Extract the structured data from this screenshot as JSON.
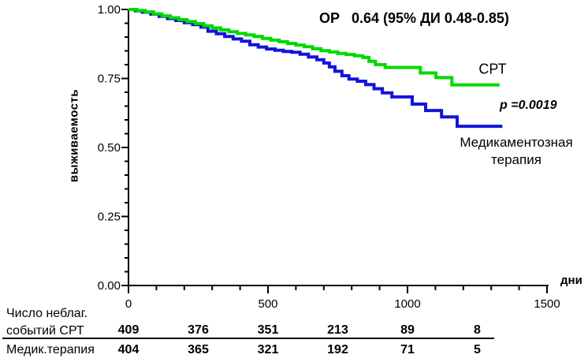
{
  "chart_data": {
    "type": "line",
    "subtype": "kaplan-meier-step",
    "annotation": "ОР   0.64 (95% ДИ 0.48-0.85)",
    "p_value_label": "p =0.0019",
    "xlabel": "дни",
    "ylabel": "выживаемость",
    "xlim": [
      0,
      1500
    ],
    "ylim": [
      0.0,
      1.0
    ],
    "x_major_ticks": [
      0,
      500,
      1000,
      1500
    ],
    "x_tick_labels": [
      "0",
      "500",
      "1000",
      "1500"
    ],
    "x_minor_step": 100,
    "y_major_ticks": [
      0.0,
      0.25,
      0.5,
      0.75,
      1.0
    ],
    "y_tick_labels": [
      "0.00",
      "0.25",
      "0.50",
      "0.75",
      "1.00"
    ],
    "y_minor_step": 0.05,
    "grid": false,
    "legend_position": "inline-right",
    "series": [
      {
        "id": "crt",
        "name": "СРТ",
        "color": "#00d900",
        "step": true,
        "points": [
          [
            0,
            1.0
          ],
          [
            30,
            0.996
          ],
          [
            60,
            0.991
          ],
          [
            90,
            0.984
          ],
          [
            120,
            0.977
          ],
          [
            150,
            0.97
          ],
          [
            180,
            0.963
          ],
          [
            210,
            0.956
          ],
          [
            240,
            0.949
          ],
          [
            270,
            0.941
          ],
          [
            300,
            0.933
          ],
          [
            330,
            0.926
          ],
          [
            360,
            0.919
          ],
          [
            390,
            0.913
          ],
          [
            420,
            0.908
          ],
          [
            450,
            0.902
          ],
          [
            480,
            0.895
          ],
          [
            510,
            0.889
          ],
          [
            540,
            0.883
          ],
          [
            570,
            0.877
          ],
          [
            600,
            0.871
          ],
          [
            630,
            0.865
          ],
          [
            660,
            0.858
          ],
          [
            690,
            0.851
          ],
          [
            720,
            0.846
          ],
          [
            750,
            0.841
          ],
          [
            780,
            0.837
          ],
          [
            810,
            0.832
          ],
          [
            840,
            0.826
          ],
          [
            862,
            0.812
          ],
          [
            885,
            0.8
          ],
          [
            920,
            0.79
          ],
          [
            1046,
            0.77
          ],
          [
            1102,
            0.753
          ],
          [
            1159,
            0.727
          ],
          [
            1330,
            0.727
          ]
        ]
      },
      {
        "id": "med",
        "name": "Медикаментозная терапия",
        "color": "#1414d8",
        "step": true,
        "points": [
          [
            0,
            1.0
          ],
          [
            25,
            0.995
          ],
          [
            50,
            0.99
          ],
          [
            80,
            0.983
          ],
          [
            110,
            0.975
          ],
          [
            140,
            0.967
          ],
          [
            170,
            0.96
          ],
          [
            200,
            0.952
          ],
          [
            230,
            0.945
          ],
          [
            260,
            0.936
          ],
          [
            285,
            0.921
          ],
          [
            315,
            0.912
          ],
          [
            345,
            0.902
          ],
          [
            375,
            0.893
          ],
          [
            405,
            0.885
          ],
          [
            435,
            0.872
          ],
          [
            465,
            0.864
          ],
          [
            495,
            0.857
          ],
          [
            525,
            0.852
          ],
          [
            555,
            0.848
          ],
          [
            585,
            0.845
          ],
          [
            615,
            0.838
          ],
          [
            645,
            0.828
          ],
          [
            675,
            0.818
          ],
          [
            700,
            0.806
          ],
          [
            720,
            0.792
          ],
          [
            740,
            0.776
          ],
          [
            765,
            0.76
          ],
          [
            790,
            0.748
          ],
          [
            820,
            0.74
          ],
          [
            850,
            0.728
          ],
          [
            880,
            0.713
          ],
          [
            910,
            0.698
          ],
          [
            944,
            0.683
          ],
          [
            1017,
            0.657
          ],
          [
            1065,
            0.634
          ],
          [
            1122,
            0.611
          ],
          [
            1178,
            0.577
          ],
          [
            1340,
            0.577
          ]
        ]
      }
    ]
  },
  "labels": {
    "crt": "СРТ",
    "med_line1": "Медикаментозная",
    "med_line2": "терапия"
  },
  "risk_table": {
    "columns_days": [
      0,
      250,
      500,
      750,
      1000,
      1250
    ],
    "rows": [
      {
        "label_line1": "Число неблаг.",
        "label_line2": "событий СРТ",
        "values": [
          "409",
          "376",
          "351",
          "213",
          "89",
          "8"
        ]
      },
      {
        "label": "Медик.терапия",
        "values": [
          "404",
          "365",
          "321",
          "192",
          "71",
          "5"
        ]
      }
    ]
  }
}
